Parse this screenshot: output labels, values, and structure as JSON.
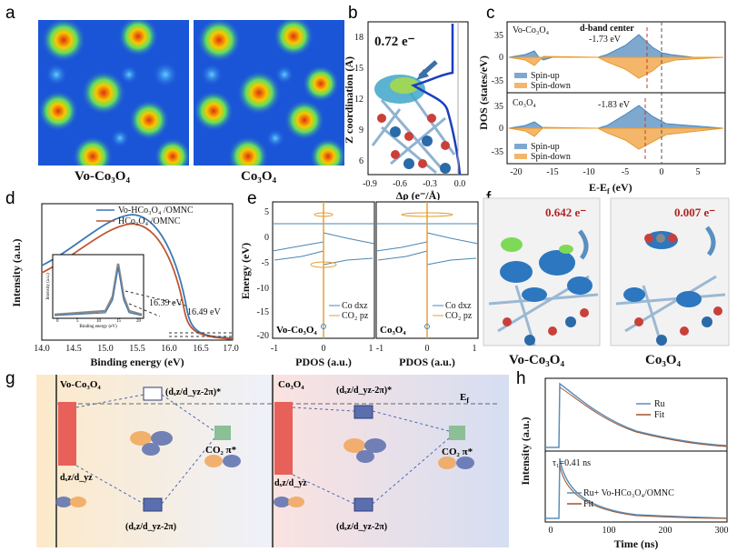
{
  "panels": {
    "a": {
      "label": "a",
      "caption_left": "Vo-Co₃O₄",
      "caption_right": "Co₃O₄"
    },
    "b": {
      "label": "b",
      "charge": "0.72 e⁻",
      "ylabel": "Z coordination (Å)",
      "xlabel": "Δρ (e⁻/Å)",
      "yticks": [
        "18",
        "15",
        "12",
        "9",
        "6"
      ],
      "xticks": [
        "-0.9",
        "-0.6",
        "-0.3",
        "0.0"
      ]
    },
    "c": {
      "label": "c",
      "ylabel": "DOS (states/eV)",
      "xlabel": "E-E",
      "xlabel_sub": "f",
      "xlabel_unit": " (eV)",
      "top_title": "Vo-Co₃O₄",
      "bottom_title": "Co₃O₄",
      "dband_title": "d-band center",
      "dband_top": "-1.73 eV",
      "dband_bottom": "-1.83 eV",
      "legend": [
        "Spin-up",
        "Spin-down"
      ],
      "yticks": [
        "35",
        "0",
        "-35"
      ],
      "xticks": [
        "-20",
        "-15",
        "-10",
        "-5",
        "0",
        "5"
      ]
    },
    "d": {
      "label": "d",
      "ylabel": "Intensity (a.u.)",
      "xlabel": "Binding energy (eV)",
      "legend": [
        "Vo-HCo₃O₄ /OMNC",
        "HCo₃O₄ /OMNC"
      ],
      "anno1": "16.49 eV",
      "anno2": "16.39 eV",
      "inset_ylabel": "Intensity (a.u.)",
      "inset_xlabel": "Binding energy (eV)",
      "inset_xticks": [
        "0",
        "5",
        "10",
        "15",
        "20"
      ],
      "xticks": [
        "14.0",
        "14.5",
        "15.0",
        "15.5",
        "16.0",
        "16.5",
        "17.0"
      ]
    },
    "e": {
      "label": "e",
      "ylabel": "Energy (eV)",
      "xlabel": "PDOS (a.u.)",
      "legend": [
        "Co dxz",
        "CO₂ pz"
      ],
      "left_title": "Vo-Co₃O₄",
      "right_title": "Co₃O₄",
      "yticks": [
        "5",
        "0",
        "-5",
        "-10",
        "-15",
        "-20"
      ],
      "xticks_left": [
        "-1",
        "0",
        "1"
      ],
      "xticks_right": [
        "-1",
        "0",
        "1"
      ]
    },
    "f": {
      "label": "f",
      "charge_left": "0.642 e⁻",
      "charge_right": "0.007 e⁻",
      "caption_left": "Vo-Co₃O₄",
      "caption_right": "Co₃O₄"
    },
    "g": {
      "label": "g",
      "left_title": "Vo-Co₃O₄",
      "right_title": "Co₃O₄",
      "antibond": "(dₓz/d_yz-2π)*",
      "bond": "(dₓz/d_yz-2π)",
      "dlabel": "dₓz/d_yz",
      "co2": "CO₂ π*",
      "ef": "E",
      "ef_sub": "f"
    },
    "h": {
      "label": "h",
      "ylabel": "Intensity (a.u.)",
      "xlabel": "Time (ns)",
      "legend_top": [
        "Ru",
        "Fit"
      ],
      "legend_bottom": [
        "Ru+ Vo-HCo₃O₄/OMNC",
        "Fit"
      ],
      "tau": "τ₁=0.41 ns",
      "xticks": [
        "0",
        "100",
        "200",
        "300"
      ]
    }
  },
  "colors": {
    "blue": "#4a86b4",
    "orange": "#f0a43a",
    "red": "#c0504d",
    "steel": "#5b8fb9"
  },
  "chart_data": [
    {
      "type": "line",
      "panel": "d",
      "x": [
        14.0,
        14.5,
        15.0,
        15.3,
        15.5,
        16.0,
        16.3,
        16.5,
        17.0
      ],
      "series": [
        {
          "name": "Vo-HCo₃O₄ /OMNC",
          "values": [
            0.38,
            0.55,
            0.8,
            0.87,
            0.82,
            0.55,
            0.3,
            0.06,
            0.02
          ]
        },
        {
          "name": "HCo₃O₄ /OMNC",
          "values": [
            0.35,
            0.52,
            0.76,
            0.82,
            0.78,
            0.52,
            0.27,
            0.05,
            0.02
          ]
        }
      ],
      "xlabel": "Binding energy (eV)",
      "ylabel": "Intensity (a.u.)",
      "xlim": [
        14.0,
        17.0
      ]
    },
    {
      "type": "line",
      "panel": "h",
      "x": [
        0,
        25,
        50,
        100,
        150,
        200,
        250,
        300
      ],
      "series": [
        {
          "name": "Ru",
          "values": [
            0,
            1.0,
            0.62,
            0.35,
            0.22,
            0.15,
            0.11,
            0.09
          ]
        },
        {
          "name": "Ru+ Vo-HCo₃O₄/OMNC",
          "values": [
            0,
            1.0,
            0.3,
            0.15,
            0.1,
            0.08,
            0.07,
            0.06
          ]
        }
      ],
      "xlabel": "Time (ns)",
      "ylabel": "Intensity (a.u.)",
      "xlim": [
        0,
        300
      ]
    }
  ]
}
